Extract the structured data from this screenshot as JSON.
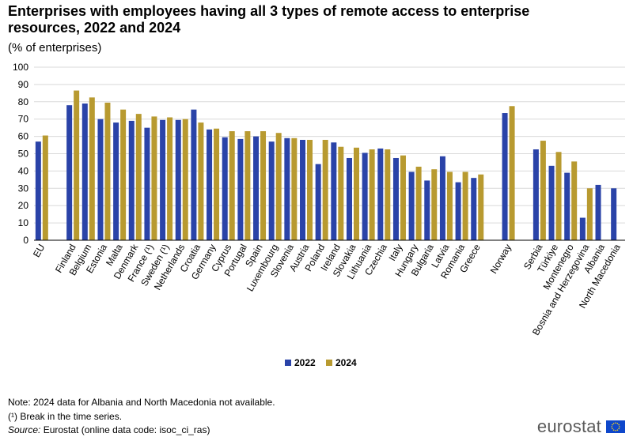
{
  "title": "Enterprises with employees having all 3 types of remote access to enterprise resources, 2022 and 2024",
  "subtitle": "(% of enterprises)",
  "notes": {
    "note": "Note: 2024 data for Albania and North Macedonia not available.",
    "break": "(¹) Break in the time series.",
    "source_label": "Source:",
    "source_text": " Eurostat (online data code: isoc_ci_ras)"
  },
  "logo": {
    "text": "eurostat",
    "icon": "eu-flag-icon"
  },
  "colors": {
    "s2022": "#2a43a8",
    "s2024": "#b89a30",
    "grid": "#d9d9d9",
    "axis": "#000000"
  },
  "chart_data": {
    "type": "bar",
    "ylim": [
      0,
      100
    ],
    "yticks": [
      0,
      10,
      20,
      30,
      40,
      50,
      60,
      70,
      80,
      90,
      100
    ],
    "grid": true,
    "legend": "bottom-center",
    "categories": [
      "EU",
      "",
      "Finland",
      "Belgium",
      "Estonia",
      "Malta",
      "Denmark",
      "France (¹)",
      "Sweden (¹)",
      "Netherlands",
      "Croatia",
      "Germany",
      "Cyprus",
      "Portugal",
      "Spain",
      "Luxembourg",
      "Slovenia",
      "Austria",
      "Poland",
      "Ireland",
      "Slovakia",
      "Lithuania",
      "Czechia",
      "Italy",
      "Hungary",
      "Bulgaria",
      "Latvia",
      "Romania",
      "Greece",
      "",
      "Norway",
      "",
      "Serbia",
      "Türkiye",
      "Montenegro",
      "Bosnia and Herzegovina",
      "Albania",
      "North Macedonia"
    ],
    "series": [
      {
        "name": "2022",
        "values": [
          57,
          null,
          78,
          79,
          70,
          68,
          69,
          65,
          69.5,
          69.5,
          75.5,
          64,
          59.5,
          58.5,
          60,
          57,
          59,
          58,
          44,
          56.5,
          47.5,
          50.5,
          53,
          47.5,
          39.5,
          34.5,
          48.5,
          33.5,
          36,
          null,
          73.5,
          null,
          52.5,
          43,
          39,
          13,
          32,
          30
        ]
      },
      {
        "name": "2024",
        "values": [
          60.5,
          null,
          86.5,
          82.5,
          79.5,
          75.5,
          73,
          71.5,
          71,
          70,
          68,
          64.5,
          63,
          63,
          63,
          62,
          59,
          58,
          58,
          54,
          53.5,
          52.5,
          52.5,
          49,
          42.5,
          41,
          39.5,
          39.5,
          38,
          null,
          77.5,
          null,
          57.5,
          51,
          45.5,
          30,
          null,
          null
        ]
      }
    ]
  }
}
